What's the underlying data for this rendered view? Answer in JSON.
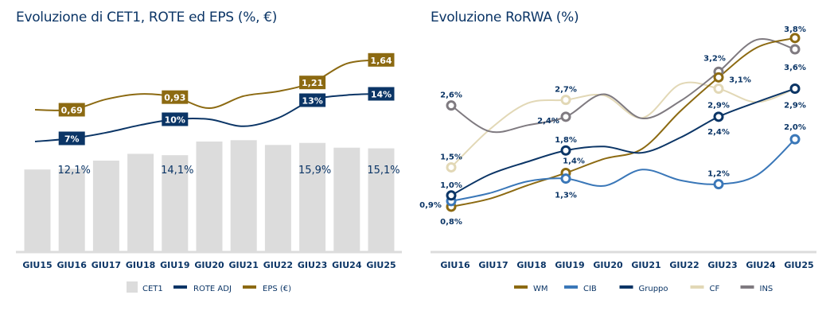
{
  "colors": {
    "cet1": "#dcdcdc",
    "rote": "#0b3566",
    "eps": "#8c6a12",
    "wm": "#8c6a12",
    "cib": "#3a77b8",
    "gruppo": "#0b3566",
    "cf": "#e2d8b6",
    "ins": "#7f7a80",
    "text": "#0b3566",
    "axis": "#dcdcdc"
  },
  "chart_data": [
    {
      "type": "bar+line",
      "title": "Evoluzione di CET1, ROTE ed EPS (%, €)",
      "categories": [
        "GIU15",
        "GIU16",
        "GIU17",
        "GIU18",
        "GIU19",
        "GIU20",
        "GIU21",
        "GIU22",
        "GIU23",
        "GIU24",
        "GIU25"
      ],
      "legend_position": "bottom",
      "grid": false,
      "series": [
        {
          "name": "CET1",
          "kind": "bar",
          "unit": "%",
          "values": [
            12.0,
            12.1,
            13.3,
            14.3,
            14.1,
            16.1,
            16.3,
            15.6,
            15.9,
            15.2,
            15.1
          ],
          "labels": {
            "1": "12,1%",
            "4": "14,1%",
            "8": "15,9%",
            "10": "15,1%"
          }
        },
        {
          "name": "ROTE ADJ",
          "kind": "line",
          "unit": "%",
          "values": [
            6.5,
            7,
            7.9,
            9.1,
            10,
            10,
            8.9,
            10.2,
            13,
            13.8,
            14
          ],
          "labels": {
            "1": "7%",
            "4": "10%",
            "8": "13%",
            "10": "14%"
          }
        },
        {
          "name": "EPS (€)",
          "kind": "line",
          "unit": "€",
          "values": [
            0.69,
            0.69,
            0.89,
            0.99,
            0.93,
            0.72,
            0.95,
            1.04,
            1.21,
            1.57,
            1.64
          ],
          "labels": {
            "1": "0,69",
            "4": "0,93",
            "8": "1,21",
            "10": "1,64"
          }
        }
      ]
    },
    {
      "type": "line",
      "title": "Evoluzione RoRWA (%)",
      "categories": [
        "GIU16",
        "GIU17",
        "GIU18",
        "GIU19",
        "GIU20",
        "GIU21",
        "GIU22",
        "GIU23",
        "GIU24",
        "GIU25"
      ],
      "ylim": [
        0,
        4.2
      ],
      "legend_position": "bottom",
      "grid": false,
      "series": [
        {
          "name": "WM",
          "values": [
            0.8,
            0.94,
            1.18,
            1.4,
            1.65,
            1.83,
            2.5,
            3.1,
            3.63,
            3.8
          ],
          "labels": {
            "0": "0,8%",
            "3": "1,4%",
            "7": "3,1%",
            "9": "3,8%"
          }
        },
        {
          "name": "CIB",
          "values": [
            0.9,
            1.04,
            1.25,
            1.3,
            1.17,
            1.46,
            1.27,
            1.2,
            1.36,
            2.0
          ],
          "labels": {
            "0": "0,9%",
            "3": "1,3%",
            "7": "1,2%",
            "9": "2,0%"
          }
        },
        {
          "name": "Gruppo",
          "values": [
            1.0,
            1.37,
            1.6,
            1.8,
            1.87,
            1.76,
            2.03,
            2.4,
            2.66,
            2.9
          ],
          "labels": {
            "0": "1,0%",
            "3": "1,8%",
            "7": "2,4%"
          }
        },
        {
          "name": "CF",
          "values": [
            1.5,
            2.17,
            2.64,
            2.7,
            2.78,
            2.38,
            2.98,
            2.9,
            2.66,
            2.9
          ],
          "labels": {
            "0": "1,5%",
            "3": "2,7%",
            "7": "2,9%",
            "9": "2,9%"
          }
        },
        {
          "name": "INS",
          "values": [
            2.6,
            2.14,
            2.25,
            2.4,
            2.8,
            2.37,
            2.68,
            3.2,
            3.77,
            3.6
          ],
          "labels": {
            "0": "2,6%",
            "3": "2,4%",
            "7": "3,2%",
            "9": "3,6%"
          }
        }
      ]
    }
  ]
}
